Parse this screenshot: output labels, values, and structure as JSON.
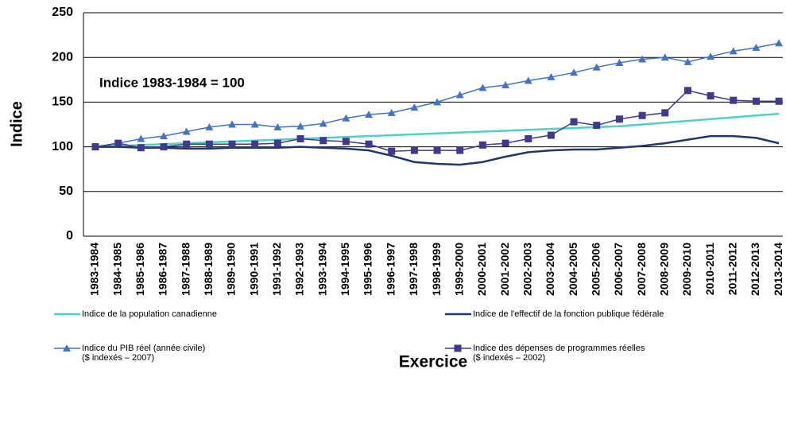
{
  "chart_data": {
    "type": "line",
    "ylabel": "Indice",
    "xlabel": "Exercice",
    "annotation": "Indice 1983-1984  = 100",
    "categories": [
      "1983-1984",
      "1984-1985",
      "1985-1986",
      "1986-1987",
      "1987-1988",
      "1988-1989",
      "1989-1990",
      "1990-1991",
      "1991-1992",
      "1992-1993",
      "1993-1994",
      "1994-1995",
      "1995-1996",
      "1996-1997",
      "1997-1998",
      "1998-1999",
      "1999-2000",
      "2000-2001",
      "2001-2002",
      "2002-2003",
      "2003-2004",
      "2004-2005",
      "2005-2006",
      "2006-2007",
      "2007-2008",
      "2008-2009",
      "2009-2010",
      "2010-2011",
      "2011-2012",
      "2012-2013",
      "2013-2014"
    ],
    "series": [
      {
        "name": "Indice de la population canadienne",
        "color": "#4fd1c5",
        "marker": "none",
        "values": [
          100,
          101,
          102,
          103,
          104,
          105,
          106,
          107,
          108,
          109,
          110,
          111,
          112,
          113,
          114,
          115,
          116,
          117,
          118,
          119,
          120,
          121,
          122,
          123,
          125,
          127,
          129,
          131,
          133,
          135,
          137
        ]
      },
      {
        "name": "Indice de l'effectif de la fonction publique fédérale",
        "color": "#1f3864",
        "marker": "none",
        "values": [
          100,
          100,
          99,
          99,
          98,
          98,
          99,
          99,
          99,
          100,
          99,
          98,
          96,
          90,
          83,
          81,
          80,
          83,
          89,
          94,
          96,
          97,
          97,
          99,
          101,
          104,
          108,
          112,
          112,
          110,
          104
        ]
      },
      {
        "name": "Indice du PIB réel (année civile)\n($ indexés – 2007)",
        "color": "#4472c4",
        "marker": "triangle",
        "values": [
          100,
          104,
          109,
          112,
          117,
          122,
          125,
          125,
          122,
          123,
          126,
          132,
          136,
          138,
          144,
          150,
          158,
          166,
          169,
          174,
          178,
          183,
          189,
          194,
          198,
          200,
          195,
          201,
          207,
          211,
          216
        ]
      },
      {
        "name": "Indice des dépenses de programmes réelles\n($ indexés – 2002)",
        "color": "#403a8c",
        "marker": "square",
        "values": [
          100,
          104,
          99,
          100,
          103,
          103,
          103,
          103,
          104,
          109,
          107,
          106,
          103,
          95,
          96,
          96,
          96,
          102,
          104,
          109,
          113,
          128,
          124,
          131,
          135,
          138,
          163,
          157,
          152,
          151,
          151
        ]
      }
    ],
    "ylim": [
      0,
      250
    ],
    "yticks": [
      0,
      50,
      100,
      150,
      200,
      250
    ],
    "grid": true
  }
}
